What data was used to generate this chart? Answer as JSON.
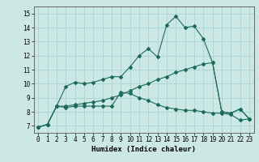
{
  "xlabel": "Humidex (Indice chaleur)",
  "ylabel": "",
  "bg_color": "#cce8e4",
  "grid_color": "#aad4cf",
  "line_color": "#1a6b5e",
  "xlim": [
    -0.5,
    23.5
  ],
  "ylim": [
    6.5,
    15.5
  ],
  "xticks": [
    0,
    1,
    2,
    3,
    4,
    5,
    6,
    7,
    8,
    9,
    10,
    11,
    12,
    13,
    14,
    15,
    16,
    17,
    18,
    19,
    20,
    21,
    22,
    23
  ],
  "yticks": [
    7,
    8,
    9,
    10,
    11,
    12,
    13,
    14,
    15
  ],
  "line1_x": [
    0,
    1,
    2,
    3,
    4,
    5,
    6,
    7,
    8,
    9,
    10,
    11,
    12,
    13,
    14,
    15,
    16,
    17,
    18,
    19,
    20,
    21,
    22,
    23
  ],
  "line1_y": [
    6.9,
    7.1,
    8.4,
    9.8,
    10.1,
    10.0,
    10.1,
    10.3,
    10.5,
    10.5,
    11.2,
    12.0,
    12.5,
    11.9,
    14.2,
    14.8,
    14.0,
    14.1,
    13.2,
    11.5,
    8.0,
    7.9,
    8.2,
    7.5
  ],
  "line2_x": [
    0,
    1,
    2,
    3,
    4,
    5,
    6,
    7,
    8,
    9,
    10,
    11,
    12,
    13,
    14,
    15,
    16,
    17,
    18,
    19,
    20,
    21,
    22,
    23
  ],
  "line2_y": [
    6.9,
    7.1,
    8.4,
    8.3,
    8.4,
    8.4,
    8.4,
    8.4,
    8.4,
    9.4,
    9.3,
    9.0,
    8.8,
    8.5,
    8.3,
    8.2,
    8.1,
    8.1,
    8.0,
    7.9,
    7.9,
    7.8,
    7.4,
    7.5
  ],
  "line3_x": [
    0,
    1,
    2,
    3,
    4,
    5,
    6,
    7,
    8,
    9,
    10,
    11,
    12,
    13,
    14,
    15,
    16,
    17,
    18,
    19,
    20,
    21,
    22,
    23
  ],
  "line3_y": [
    6.9,
    7.1,
    8.4,
    8.4,
    8.5,
    8.6,
    8.7,
    8.8,
    9.0,
    9.2,
    9.5,
    9.8,
    10.0,
    10.3,
    10.5,
    10.8,
    11.0,
    11.2,
    11.4,
    11.5,
    8.0,
    7.9,
    8.2,
    7.5
  ],
  "marker": "D",
  "markersize": 2.0,
  "linewidth": 0.8,
  "xlabel_fontsize": 6.5,
  "tick_fontsize": 5.5
}
